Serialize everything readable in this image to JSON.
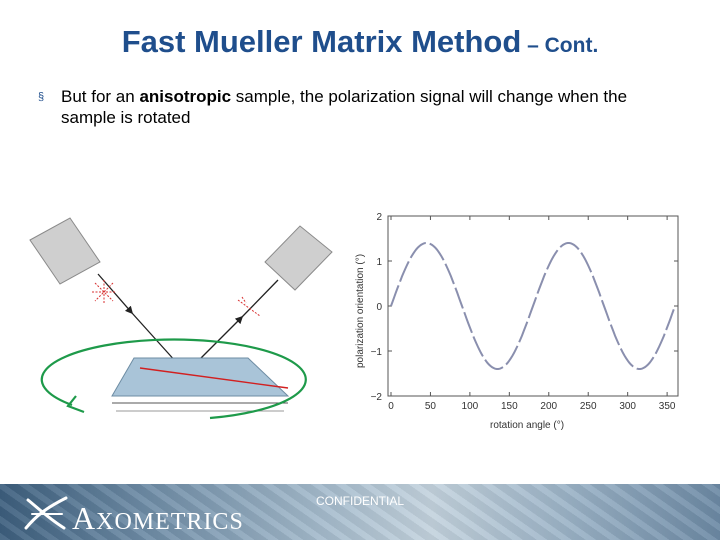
{
  "title": {
    "main": "Fast Mueller Matrix Method",
    "suffix": " – Cont."
  },
  "bullet": {
    "marker": "§",
    "text_before": "But for an ",
    "emphasis": "anisotropic",
    "text_after": " sample, the polarization signal will change when the sample is rotated"
  },
  "chart_data": {
    "type": "line",
    "title": "",
    "xlabel": "rotation angle",
    "xunit": "(°)",
    "ylabel": "polarization orientation (°)",
    "xlim": [
      0,
      360
    ],
    "ylim": [
      -2,
      2
    ],
    "x_ticks": [
      "0",
      "50",
      "100",
      "150",
      "200",
      "250",
      "300",
      "350"
    ],
    "y_ticks": [
      "2",
      "1",
      "0",
      "−1",
      "−2"
    ],
    "x_tick_values": [
      0,
      50,
      100,
      150,
      200,
      250,
      300,
      350
    ],
    "y_tick_values": [
      2,
      1,
      0,
      -1,
      -2
    ],
    "series": [
      {
        "amplitude": 1.4,
        "offset": 0,
        "period": 180,
        "peak_at": 45,
        "color": "#8a8fae",
        "dashed": true
      }
    ]
  },
  "footer": {
    "confidential": "CONFIDENTIAL",
    "logo_first": "A",
    "logo_rest": "XOMETRICS"
  },
  "colors": {
    "title": "#1f4e8c",
    "rotation_arrow": "#1e9a4a",
    "sample": "#a9c4d8",
    "sample_line": "#d22020"
  }
}
